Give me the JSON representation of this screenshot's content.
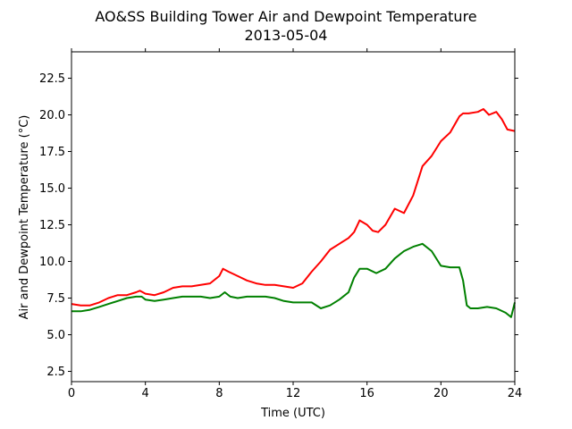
{
  "chart_data": {
    "type": "line",
    "title": "AO&SS Building Tower Air and Dewpoint Temperature",
    "subtitle": "2013-05-04",
    "xlabel": "Time (UTC)",
    "ylabel": "Air and Dewpoint Temperature (°C)",
    "xlim": [
      0,
      24
    ],
    "ylim": [
      1.8,
      24.3
    ],
    "xticks": [
      0,
      4,
      8,
      12,
      16,
      20,
      24
    ],
    "xtick_labels": [
      "0",
      "4",
      "8",
      "12",
      "16",
      "20",
      "24"
    ],
    "yticks": [
      2.5,
      5.0,
      7.5,
      10.0,
      12.5,
      15.0,
      17.5,
      20.0,
      22.5
    ],
    "ytick_labels": [
      "2.5",
      "5.0",
      "7.5",
      "10.0",
      "12.5",
      "15.0",
      "17.5",
      "20.0",
      "22.5"
    ],
    "grid": false,
    "series": [
      {
        "color": "#ff0000",
        "x": [
          0,
          0.5,
          1,
          1.5,
          2,
          2.5,
          3,
          3.5,
          3.7,
          4,
          4.5,
          5,
          5.5,
          6,
          6.5,
          7,
          7.5,
          8,
          8.2,
          8.5,
          9,
          9.5,
          10,
          10.5,
          11,
          11.5,
          12,
          12.5,
          13,
          13.5,
          14,
          14.5,
          15,
          15.3,
          15.6,
          16,
          16.3,
          16.6,
          17,
          17.5,
          18,
          18.5,
          19,
          19.5,
          20,
          20.5,
          21,
          21.2,
          21.5,
          22,
          22.3,
          22.6,
          23,
          23.3,
          23.6,
          24
        ],
        "values": [
          7.1,
          7.0,
          7.0,
          7.2,
          7.5,
          7.7,
          7.7,
          7.9,
          8.0,
          7.8,
          7.7,
          7.9,
          8.2,
          8.3,
          8.3,
          8.4,
          8.5,
          9.0,
          9.5,
          9.3,
          9.0,
          8.7,
          8.5,
          8.4,
          8.4,
          8.3,
          8.2,
          8.5,
          9.3,
          10.0,
          10.8,
          11.2,
          11.6,
          12.0,
          12.8,
          12.5,
          12.1,
          12.0,
          12.5,
          13.6,
          13.3,
          14.5,
          16.5,
          17.2,
          18.2,
          18.8,
          19.9,
          20.1,
          20.1,
          20.2,
          20.4,
          20.0,
          20.2,
          19.7,
          19.0,
          18.9
        ]
      },
      {
        "color": "#008000",
        "x": [
          0,
          0.5,
          1,
          1.5,
          2,
          2.5,
          3,
          3.5,
          3.8,
          4,
          4.5,
          5,
          5.5,
          6,
          6.5,
          7,
          7.5,
          8,
          8.3,
          8.6,
          9,
          9.5,
          10,
          10.5,
          11,
          11.5,
          12,
          12.5,
          13,
          13.5,
          14,
          14.5,
          15,
          15.3,
          15.6,
          16,
          16.5,
          17,
          17.5,
          18,
          18.5,
          19,
          19.5,
          20,
          20.5,
          21,
          21.2,
          21.4,
          21.6,
          22,
          22.5,
          23,
          23.5,
          23.8,
          24
        ],
        "values": [
          6.6,
          6.6,
          6.7,
          6.9,
          7.1,
          7.3,
          7.5,
          7.6,
          7.6,
          7.4,
          7.3,
          7.4,
          7.5,
          7.6,
          7.6,
          7.6,
          7.5,
          7.6,
          7.9,
          7.6,
          7.5,
          7.6,
          7.6,
          7.6,
          7.5,
          7.3,
          7.2,
          7.2,
          7.2,
          6.8,
          7.0,
          7.4,
          7.9,
          8.9,
          9.5,
          9.5,
          9.2,
          9.5,
          10.2,
          10.7,
          11.0,
          11.2,
          10.7,
          9.7,
          9.6,
          9.6,
          8.7,
          7.0,
          6.8,
          6.8,
          6.9,
          6.8,
          6.5,
          6.2,
          7.2
        ]
      }
    ]
  }
}
